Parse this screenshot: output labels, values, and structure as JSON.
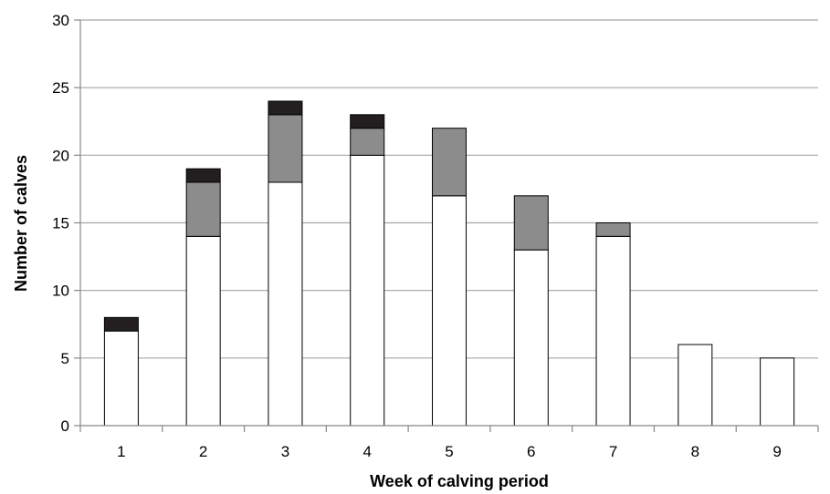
{
  "chart_data": {
    "type": "bar",
    "stacked": true,
    "title": "",
    "xlabel": "Week of calving period",
    "ylabel": "Number of calves",
    "categories": [
      "1",
      "2",
      "3",
      "4",
      "5",
      "6",
      "7",
      "8",
      "9"
    ],
    "ylim": [
      0,
      30
    ],
    "yticks": [
      0,
      5,
      10,
      15,
      20,
      25,
      30
    ],
    "grid": true,
    "legend": "none",
    "series": [
      {
        "color": "#ffffff",
        "values": [
          7,
          14,
          18,
          20,
          17,
          13,
          14,
          6,
          5
        ]
      },
      {
        "color": "#8c8c8c",
        "values": [
          0,
          4,
          5,
          2,
          5,
          4,
          1,
          0,
          0
        ]
      },
      {
        "color": "#231f20",
        "values": [
          1,
          1,
          1,
          1,
          0,
          0,
          0,
          0,
          0
        ]
      }
    ]
  }
}
